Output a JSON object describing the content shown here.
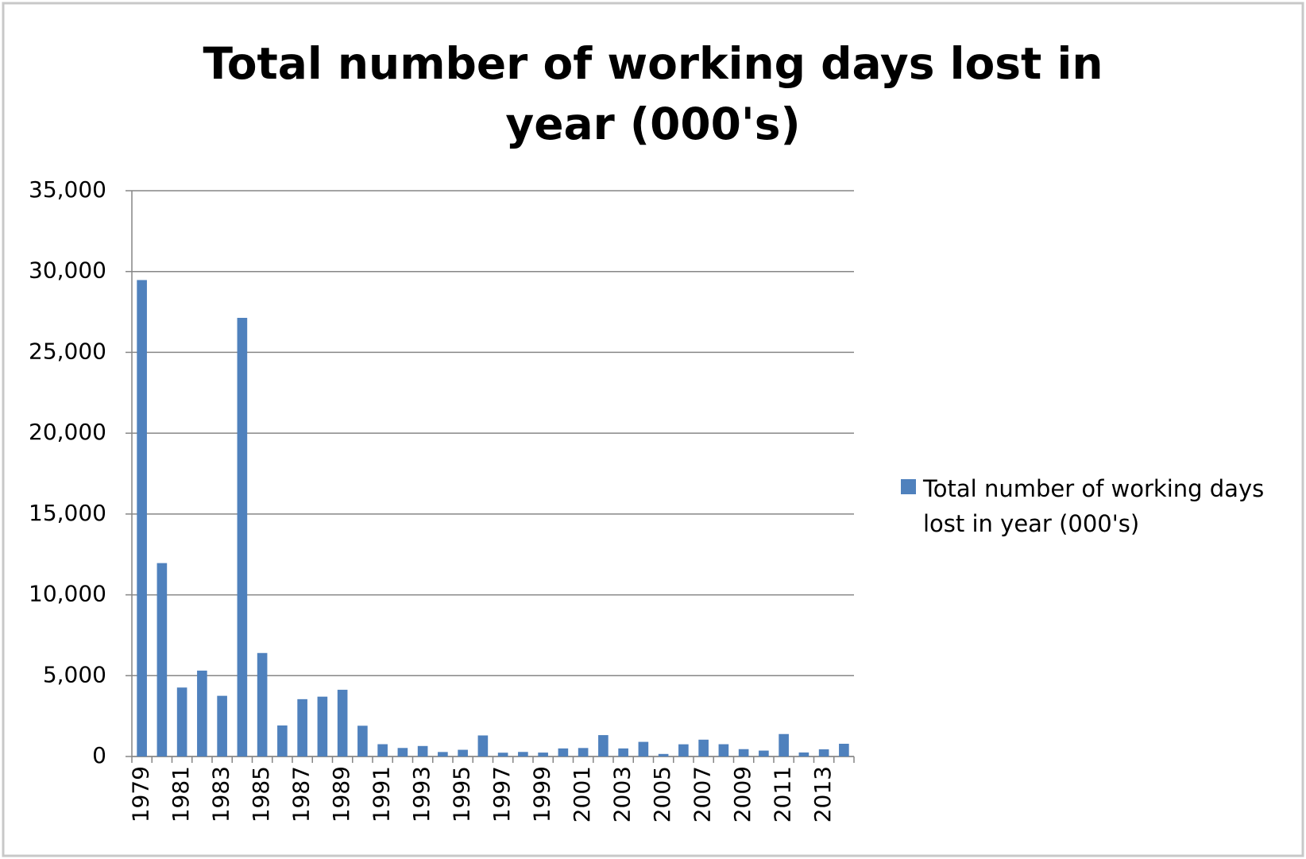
{
  "chart_data": {
    "type": "bar",
    "title": "Total number of working days lost in year (000's)",
    "categories": [
      "1979",
      null,
      "1981",
      null,
      "1983",
      null,
      "1985",
      null,
      "1987",
      null,
      "1989",
      null,
      "1991",
      null,
      "1993",
      null,
      "1995",
      null,
      "1997",
      null,
      "1999",
      null,
      "2001",
      null,
      "2003",
      null,
      "2005",
      null,
      "2007",
      null,
      "2009",
      null,
      "2011",
      null,
      "2013",
      null
    ],
    "series": [
      {
        "name": "Total number of working days lost in year (000's)",
        "color": "#4f81bd",
        "values": [
          29474,
          11964,
          4266,
          5313,
          3754,
          27135,
          6402,
          1920,
          3546,
          3702,
          4128,
          1903,
          761,
          528,
          649,
          278,
          415,
          1303,
          235,
          282,
          242,
          499,
          525,
          1323,
          499,
          905,
          157,
          755,
          1041,
          759,
          455,
          365,
          1389,
          249,
          444,
          788
        ]
      }
    ],
    "ylim": [
      0,
      35000
    ],
    "yticks": [
      0,
      {
        "value": 5000,
        "label": "5,000"
      },
      {
        "value": 10000,
        "label": "10,000"
      },
      {
        "value": 15000,
        "label": "15,000"
      },
      {
        "value": 20000,
        "label": "20,000"
      },
      {
        "value": 25000,
        "label": "25,000"
      },
      {
        "value": 30000,
        "label": "30,000"
      },
      {
        "value": 35000,
        "label": "35,000"
      }
    ],
    "grid": true,
    "legend": "right"
  }
}
